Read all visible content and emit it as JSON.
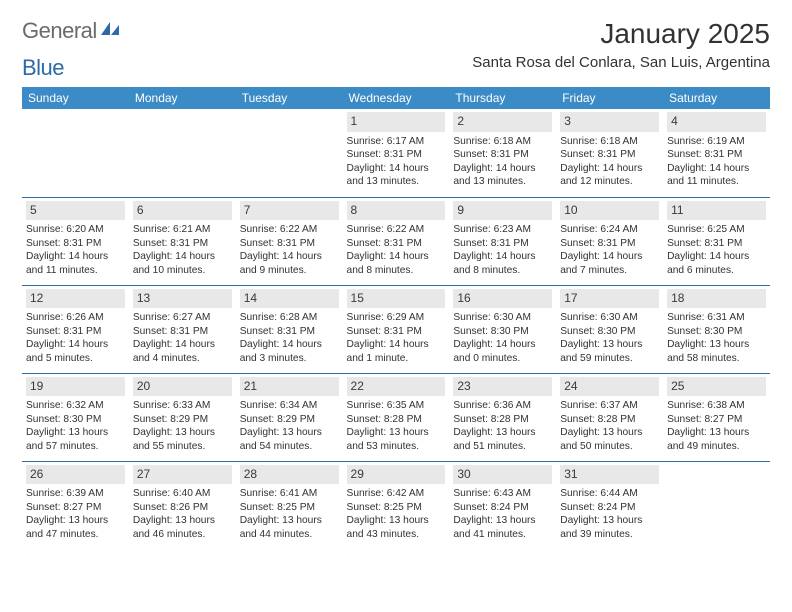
{
  "logo": {
    "text1": "General",
    "text2": "Blue"
  },
  "header": {
    "month_title": "January 2025",
    "location": "Santa Rosa del Conlara, San Luis, Argentina"
  },
  "columns": [
    "Sunday",
    "Monday",
    "Tuesday",
    "Wednesday",
    "Thursday",
    "Friday",
    "Saturday"
  ],
  "colors": {
    "header_bg": "#3b8bc7",
    "header_fg": "#ffffff",
    "rule": "#2c6aa8",
    "daynum_bg": "#e8e8e8",
    "text": "#323232"
  },
  "weeks": [
    [
      null,
      null,
      null,
      {
        "n": "1",
        "sunrise": "Sunrise: 6:17 AM",
        "sunset": "Sunset: 8:31 PM",
        "day1": "Daylight: 14 hours",
        "day2": "and 13 minutes."
      },
      {
        "n": "2",
        "sunrise": "Sunrise: 6:18 AM",
        "sunset": "Sunset: 8:31 PM",
        "day1": "Daylight: 14 hours",
        "day2": "and 13 minutes."
      },
      {
        "n": "3",
        "sunrise": "Sunrise: 6:18 AM",
        "sunset": "Sunset: 8:31 PM",
        "day1": "Daylight: 14 hours",
        "day2": "and 12 minutes."
      },
      {
        "n": "4",
        "sunrise": "Sunrise: 6:19 AM",
        "sunset": "Sunset: 8:31 PM",
        "day1": "Daylight: 14 hours",
        "day2": "and 11 minutes."
      }
    ],
    [
      {
        "n": "5",
        "sunrise": "Sunrise: 6:20 AM",
        "sunset": "Sunset: 8:31 PM",
        "day1": "Daylight: 14 hours",
        "day2": "and 11 minutes."
      },
      {
        "n": "6",
        "sunrise": "Sunrise: 6:21 AM",
        "sunset": "Sunset: 8:31 PM",
        "day1": "Daylight: 14 hours",
        "day2": "and 10 minutes."
      },
      {
        "n": "7",
        "sunrise": "Sunrise: 6:22 AM",
        "sunset": "Sunset: 8:31 PM",
        "day1": "Daylight: 14 hours",
        "day2": "and 9 minutes."
      },
      {
        "n": "8",
        "sunrise": "Sunrise: 6:22 AM",
        "sunset": "Sunset: 8:31 PM",
        "day1": "Daylight: 14 hours",
        "day2": "and 8 minutes."
      },
      {
        "n": "9",
        "sunrise": "Sunrise: 6:23 AM",
        "sunset": "Sunset: 8:31 PM",
        "day1": "Daylight: 14 hours",
        "day2": "and 8 minutes."
      },
      {
        "n": "10",
        "sunrise": "Sunrise: 6:24 AM",
        "sunset": "Sunset: 8:31 PM",
        "day1": "Daylight: 14 hours",
        "day2": "and 7 minutes."
      },
      {
        "n": "11",
        "sunrise": "Sunrise: 6:25 AM",
        "sunset": "Sunset: 8:31 PM",
        "day1": "Daylight: 14 hours",
        "day2": "and 6 minutes."
      }
    ],
    [
      {
        "n": "12",
        "sunrise": "Sunrise: 6:26 AM",
        "sunset": "Sunset: 8:31 PM",
        "day1": "Daylight: 14 hours",
        "day2": "and 5 minutes."
      },
      {
        "n": "13",
        "sunrise": "Sunrise: 6:27 AM",
        "sunset": "Sunset: 8:31 PM",
        "day1": "Daylight: 14 hours",
        "day2": "and 4 minutes."
      },
      {
        "n": "14",
        "sunrise": "Sunrise: 6:28 AM",
        "sunset": "Sunset: 8:31 PM",
        "day1": "Daylight: 14 hours",
        "day2": "and 3 minutes."
      },
      {
        "n": "15",
        "sunrise": "Sunrise: 6:29 AM",
        "sunset": "Sunset: 8:31 PM",
        "day1": "Daylight: 14 hours",
        "day2": "and 1 minute."
      },
      {
        "n": "16",
        "sunrise": "Sunrise: 6:30 AM",
        "sunset": "Sunset: 8:30 PM",
        "day1": "Daylight: 14 hours",
        "day2": "and 0 minutes."
      },
      {
        "n": "17",
        "sunrise": "Sunrise: 6:30 AM",
        "sunset": "Sunset: 8:30 PM",
        "day1": "Daylight: 13 hours",
        "day2": "and 59 minutes."
      },
      {
        "n": "18",
        "sunrise": "Sunrise: 6:31 AM",
        "sunset": "Sunset: 8:30 PM",
        "day1": "Daylight: 13 hours",
        "day2": "and 58 minutes."
      }
    ],
    [
      {
        "n": "19",
        "sunrise": "Sunrise: 6:32 AM",
        "sunset": "Sunset: 8:30 PM",
        "day1": "Daylight: 13 hours",
        "day2": "and 57 minutes."
      },
      {
        "n": "20",
        "sunrise": "Sunrise: 6:33 AM",
        "sunset": "Sunset: 8:29 PM",
        "day1": "Daylight: 13 hours",
        "day2": "and 55 minutes."
      },
      {
        "n": "21",
        "sunrise": "Sunrise: 6:34 AM",
        "sunset": "Sunset: 8:29 PM",
        "day1": "Daylight: 13 hours",
        "day2": "and 54 minutes."
      },
      {
        "n": "22",
        "sunrise": "Sunrise: 6:35 AM",
        "sunset": "Sunset: 8:28 PM",
        "day1": "Daylight: 13 hours",
        "day2": "and 53 minutes."
      },
      {
        "n": "23",
        "sunrise": "Sunrise: 6:36 AM",
        "sunset": "Sunset: 8:28 PM",
        "day1": "Daylight: 13 hours",
        "day2": "and 51 minutes."
      },
      {
        "n": "24",
        "sunrise": "Sunrise: 6:37 AM",
        "sunset": "Sunset: 8:28 PM",
        "day1": "Daylight: 13 hours",
        "day2": "and 50 minutes."
      },
      {
        "n": "25",
        "sunrise": "Sunrise: 6:38 AM",
        "sunset": "Sunset: 8:27 PM",
        "day1": "Daylight: 13 hours",
        "day2": "and 49 minutes."
      }
    ],
    [
      {
        "n": "26",
        "sunrise": "Sunrise: 6:39 AM",
        "sunset": "Sunset: 8:27 PM",
        "day1": "Daylight: 13 hours",
        "day2": "and 47 minutes."
      },
      {
        "n": "27",
        "sunrise": "Sunrise: 6:40 AM",
        "sunset": "Sunset: 8:26 PM",
        "day1": "Daylight: 13 hours",
        "day2": "and 46 minutes."
      },
      {
        "n": "28",
        "sunrise": "Sunrise: 6:41 AM",
        "sunset": "Sunset: 8:25 PM",
        "day1": "Daylight: 13 hours",
        "day2": "and 44 minutes."
      },
      {
        "n": "29",
        "sunrise": "Sunrise: 6:42 AM",
        "sunset": "Sunset: 8:25 PM",
        "day1": "Daylight: 13 hours",
        "day2": "and 43 minutes."
      },
      {
        "n": "30",
        "sunrise": "Sunrise: 6:43 AM",
        "sunset": "Sunset: 8:24 PM",
        "day1": "Daylight: 13 hours",
        "day2": "and 41 minutes."
      },
      {
        "n": "31",
        "sunrise": "Sunrise: 6:44 AM",
        "sunset": "Sunset: 8:24 PM",
        "day1": "Daylight: 13 hours",
        "day2": "and 39 minutes."
      },
      null
    ]
  ]
}
